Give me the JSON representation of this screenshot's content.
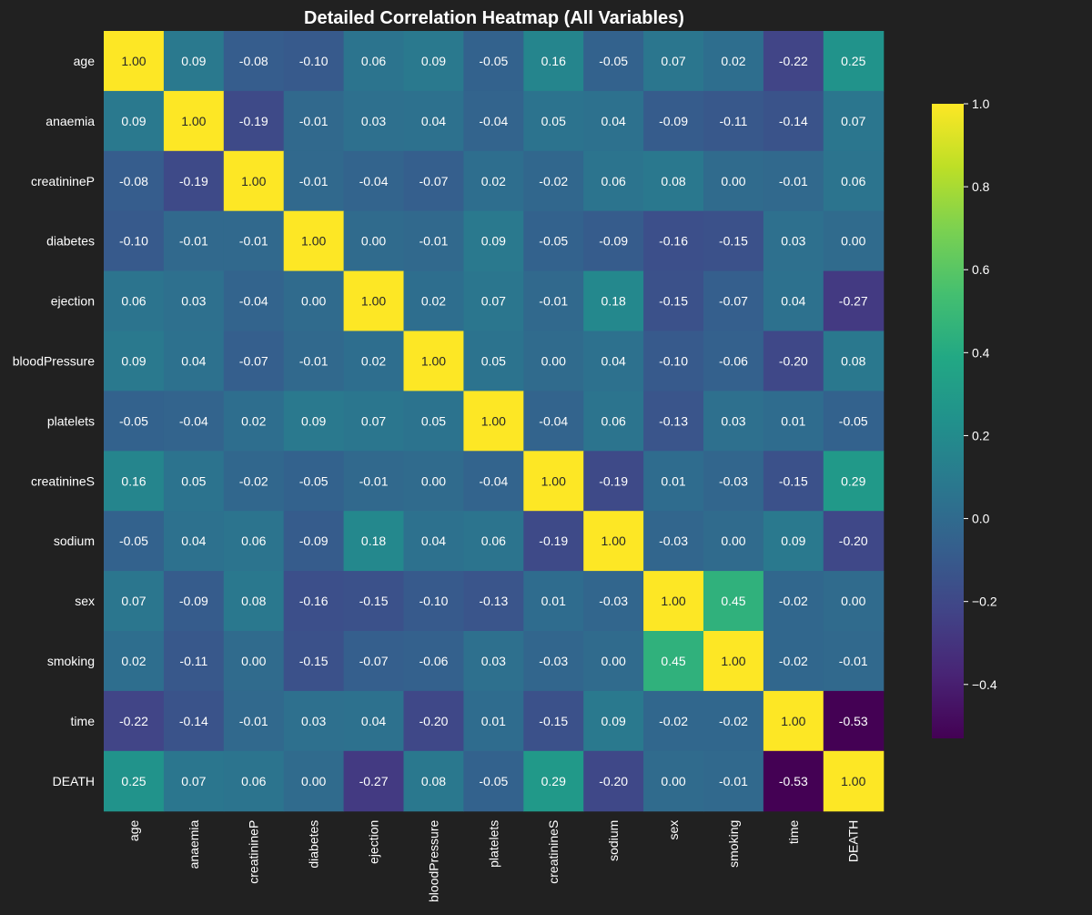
{
  "chart_data": {
    "type": "heatmap",
    "title": "Detailed Correlation Heatmap (All Variables)",
    "xlabel": "",
    "ylabel": "",
    "rows": [
      "age",
      "anaemia",
      "creatinineP",
      "diabetes",
      "ejection",
      "bloodPressure",
      "platelets",
      "creatinineS",
      "sodium",
      "sex",
      "smoking",
      "time",
      "DEATH"
    ],
    "columns": [
      "age",
      "anaemia",
      "creatinineP",
      "diabetes",
      "ejection",
      "bloodPressure",
      "platelets",
      "creatinineS",
      "sodium",
      "sex",
      "smoking",
      "time",
      "DEATH"
    ],
    "values": [
      [
        1.0,
        0.09,
        -0.08,
        -0.1,
        0.06,
        0.09,
        -0.05,
        0.16,
        -0.05,
        0.07,
        0.02,
        -0.22,
        0.25
      ],
      [
        0.09,
        1.0,
        -0.19,
        -0.01,
        0.03,
        0.04,
        -0.04,
        0.05,
        0.04,
        -0.09,
        -0.11,
        -0.14,
        0.07
      ],
      [
        -0.08,
        -0.19,
        1.0,
        -0.01,
        -0.04,
        -0.07,
        0.02,
        -0.02,
        0.06,
        0.08,
        0.0,
        -0.01,
        0.06
      ],
      [
        -0.1,
        -0.01,
        -0.01,
        1.0,
        -0.0,
        -0.01,
        0.09,
        -0.05,
        -0.09,
        -0.16,
        -0.15,
        0.03,
        -0.0
      ],
      [
        0.06,
        0.03,
        -0.04,
        -0.0,
        1.0,
        0.02,
        0.07,
        -0.01,
        0.18,
        -0.15,
        -0.07,
        0.04,
        -0.27
      ],
      [
        0.09,
        0.04,
        -0.07,
        -0.01,
        0.02,
        1.0,
        0.05,
        -0.0,
        0.04,
        -0.1,
        -0.06,
        -0.2,
        0.08
      ],
      [
        -0.05,
        -0.04,
        0.02,
        0.09,
        0.07,
        0.05,
        1.0,
        -0.04,
        0.06,
        -0.13,
        0.03,
        0.01,
        -0.05
      ],
      [
        0.16,
        0.05,
        -0.02,
        -0.05,
        -0.01,
        -0.0,
        -0.04,
        1.0,
        -0.19,
        0.01,
        -0.03,
        -0.15,
        0.29
      ],
      [
        -0.05,
        0.04,
        0.06,
        -0.09,
        0.18,
        0.04,
        0.06,
        -0.19,
        1.0,
        -0.03,
        0.0,
        0.09,
        -0.2
      ],
      [
        0.07,
        -0.09,
        0.08,
        -0.16,
        -0.15,
        -0.1,
        -0.13,
        0.01,
        -0.03,
        1.0,
        0.45,
        -0.02,
        -0.0
      ],
      [
        0.02,
        -0.11,
        0.0,
        -0.15,
        -0.07,
        -0.06,
        0.03,
        -0.03,
        0.0,
        0.45,
        1.0,
        -0.02,
        -0.01
      ],
      [
        -0.22,
        -0.14,
        -0.01,
        0.03,
        0.04,
        -0.2,
        0.01,
        -0.15,
        0.09,
        -0.02,
        -0.02,
        1.0,
        -0.53
      ],
      [
        0.25,
        0.07,
        0.06,
        -0.0,
        -0.27,
        0.08,
        -0.05,
        0.29,
        -0.2,
        -0.0,
        -0.01,
        -0.53,
        1.0
      ]
    ],
    "value_format": "0.00",
    "colorbar": {
      "colormap": "viridis",
      "vmin": -0.53,
      "vmax": 1.0,
      "ticks": [
        -0.4,
        -0.2,
        0.0,
        0.2,
        0.4,
        0.6,
        0.8,
        1.0
      ],
      "tick_labels": [
        "−0.4",
        "−0.2",
        "0.0",
        "0.2",
        "0.4",
        "0.6",
        "0.8",
        "1.0"
      ]
    },
    "grid": false,
    "colors": {
      "background": "#212121",
      "text": "#ffffff",
      "annotation_light": "#ffffff",
      "annotation_dark": "#262626"
    }
  }
}
